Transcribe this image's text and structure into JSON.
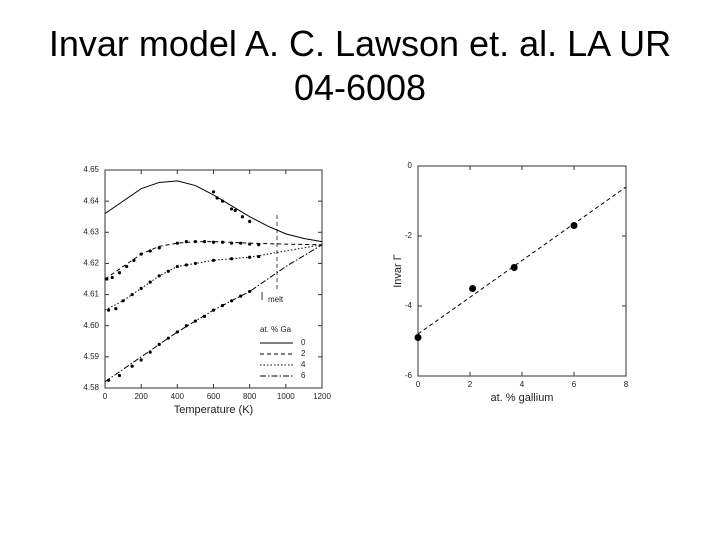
{
  "slide": {
    "title": "Invar model A. C. Lawson et. al. LA UR 04-6008"
  },
  "chart_data": [
    {
      "type": "line",
      "x_label": "Temperature (K)",
      "xlim": [
        0,
        1200
      ],
      "xticks": [
        0,
        200,
        400,
        600,
        800,
        1000,
        1200
      ],
      "ylim": [
        4.58,
        4.65
      ],
      "yticks": [
        4.58,
        4.59,
        {
          "value": 4.6,
          "label": "4.60"
        },
        4.61,
        4.62,
        4.63,
        4.64,
        4.65
      ],
      "legend_title": "at. % Ga",
      "annotation": "melt",
      "series": [
        {
          "name": "0",
          "dash": "solid",
          "color": "#000000",
          "x": [
            0,
            100,
            200,
            300,
            400,
            500,
            600,
            700,
            800,
            900,
            1000,
            1100,
            1200
          ],
          "values": [
            4.636,
            4.64,
            4.644,
            4.646,
            4.6465,
            4.645,
            4.642,
            4.6385,
            4.635,
            4.632,
            4.6295,
            4.628,
            4.627
          ],
          "points_x": [
            600,
            620,
            650,
            700,
            720,
            760,
            800
          ],
          "points_values": [
            4.643,
            4.641,
            4.64,
            4.6375,
            4.637,
            4.635,
            4.6335
          ]
        },
        {
          "name": "2",
          "dash": "dashed",
          "color": "#000000",
          "x": [
            0,
            100,
            200,
            300,
            400,
            500,
            600,
            800,
            1000,
            1200
          ],
          "values": [
            4.615,
            4.619,
            4.623,
            4.6255,
            4.6265,
            4.627,
            4.627,
            4.6265,
            4.6262,
            4.626
          ],
          "points_x": [
            10,
            40,
            80,
            120,
            160,
            200,
            250,
            300,
            400,
            450,
            500,
            550,
            600,
            650,
            700,
            750,
            800,
            850
          ],
          "points_values": [
            4.615,
            4.6155,
            4.617,
            4.619,
            4.621,
            4.623,
            4.624,
            4.625,
            4.6265,
            4.627,
            4.627,
            4.627,
            4.6268,
            4.6268,
            4.6265,
            4.6265,
            4.6262,
            4.626
          ]
        },
        {
          "name": "4",
          "dash": "dotted",
          "color": "#000000",
          "x": [
            0,
            100,
            200,
            300,
            400,
            500,
            600,
            800,
            1000,
            1200
          ],
          "values": [
            4.605,
            4.608,
            4.612,
            4.616,
            4.619,
            4.62,
            4.621,
            4.622,
            4.624,
            4.626
          ],
          "points_x": [
            20,
            60,
            100,
            150,
            200,
            250,
            300,
            350,
            400,
            450,
            500,
            600,
            700,
            800,
            850
          ],
          "points_values": [
            4.605,
            4.6055,
            4.608,
            4.61,
            4.612,
            4.614,
            4.616,
            4.6175,
            4.619,
            4.6195,
            4.62,
            4.621,
            4.6215,
            4.622,
            4.6222
          ]
        },
        {
          "name": "6",
          "dash": "dashdot",
          "color": "#000000",
          "x": [
            0,
            200,
            400,
            600,
            800,
            1000,
            1200
          ],
          "values": [
            4.582,
            4.59,
            4.598,
            4.605,
            4.611,
            4.619,
            4.626
          ],
          "points_x": [
            20,
            80,
            150,
            200,
            250,
            300,
            350,
            400,
            450,
            500,
            550,
            600,
            650,
            700,
            750,
            800
          ],
          "points_values": [
            4.5825,
            4.584,
            4.587,
            4.589,
            4.5915,
            4.594,
            4.596,
            4.598,
            4.6,
            4.6015,
            4.603,
            4.605,
            4.6065,
            4.608,
            4.6095,
            4.611
          ]
        }
      ]
    },
    {
      "type": "scatter",
      "x_label": "at. % gallium",
      "y_label": "Invar Γ",
      "xlim": [
        0,
        8
      ],
      "xticks": [
        0,
        2,
        4,
        6,
        8
      ],
      "ylim": [
        -6,
        0
      ],
      "yticks": [
        0,
        -2,
        -4,
        -6
      ],
      "color": "#000000",
      "x": [
        0,
        2.1,
        3.7,
        6
      ],
      "values": [
        -4.9,
        -3.5,
        -2.9,
        -1.7
      ],
      "fit": {
        "dash": "dashed",
        "x": [
          0,
          8
        ],
        "values": [
          -4.8,
          -0.6
        ]
      }
    }
  ]
}
